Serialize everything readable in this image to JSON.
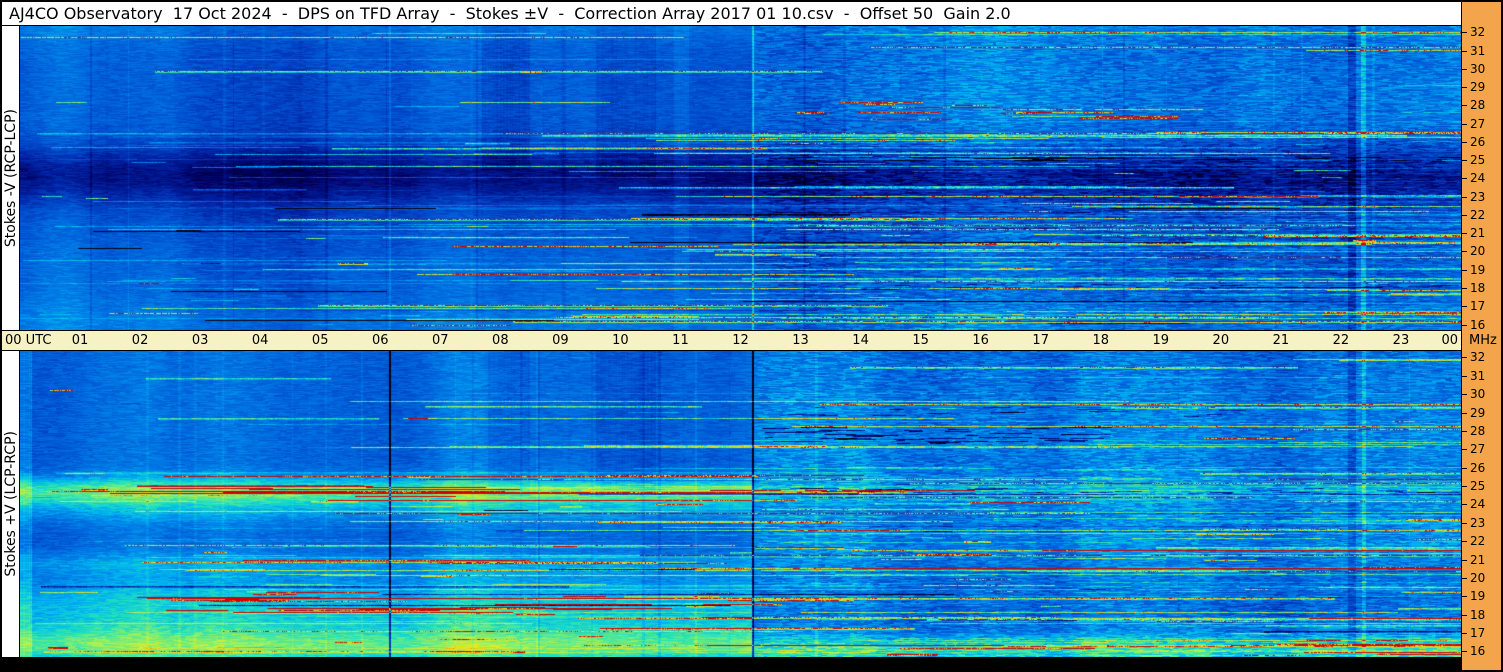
{
  "header": {
    "title": "AJ4CO Observatory  17 Oct 2024  -  DPS on TFD Array  -  Stokes ±V  -  Correction Array 2017 01 10.csv  -  Offset 50  Gain 2.0"
  },
  "panel_labels": {
    "top": "Stokes -V (RCP-LCP)",
    "bottom": "Stokes +V (LCP-RCP)"
  },
  "time_axis": {
    "start": "00 UTC",
    "hours": [
      "01",
      "02",
      "03",
      "04",
      "05",
      "06",
      "07",
      "08",
      "09",
      "10",
      "11",
      "12",
      "13",
      "14",
      "15",
      "16",
      "17",
      "18",
      "19",
      "20",
      "21",
      "22",
      "23"
    ],
    "end": "00",
    "unit": "MHz"
  },
  "freq_axis": {
    "ticks": [
      "32",
      "31",
      "30",
      "29",
      "28",
      "27",
      "26",
      "25",
      "24",
      "23",
      "22",
      "21",
      "20",
      "19",
      "18",
      "17",
      "16"
    ],
    "unit": "MHz"
  },
  "colors": {
    "axis_bg": "#F4A44A",
    "time_band_bg": "#F7F2C4",
    "frame": "#000000",
    "label_bg": "#FFFFFF"
  },
  "chart_data": {
    "type": "heatmap",
    "title": "DPS on TFD Array - Stokes ±V - 17 Oct 2024 - dynamic spectra, two polarization panels",
    "x_axis": {
      "label": "UTC",
      "range_hours": [
        0,
        24
      ],
      "tick_step": 1
    },
    "y_axis": {
      "label": "MHz",
      "range_mhz": [
        16,
        32
      ],
      "tick_step": 1
    },
    "f_view": [
      15.7,
      32.35
    ],
    "palette_stops": [
      [
        0.0,
        "#000010"
      ],
      [
        0.1,
        "#000060"
      ],
      [
        0.22,
        "#0020A0"
      ],
      [
        0.35,
        "#0050D0"
      ],
      [
        0.48,
        "#0080E8"
      ],
      [
        0.58,
        "#00B4F0"
      ],
      [
        0.68,
        "#20E0C0"
      ],
      [
        0.78,
        "#80EE70"
      ],
      [
        0.86,
        "#D8F030"
      ],
      [
        0.92,
        "#F8C800"
      ],
      [
        0.96,
        "#F87800"
      ],
      [
        1.0,
        "#D00000"
      ]
    ],
    "panels": [
      {
        "label": "Stokes -V (RCP-LCP)",
        "seed": 1017,
        "base": 0.4,
        "split_hour": 12.2,
        "speckle": {
          "left": 0.045,
          "right": 0.1
        },
        "bands": [
          {
            "center": 24.2,
            "sigma": 1.1,
            "amp": -0.2,
            "t0": 0,
            "t1": 24
          },
          {
            "center": 23.0,
            "sigma": 2.2,
            "amp": -0.06,
            "t0": 0,
            "t1": 24
          },
          {
            "center": 28.5,
            "sigma": 3.0,
            "amp": 0.06,
            "t0": 12.2,
            "t1": 24
          },
          {
            "center": 32.2,
            "sigma": 0.5,
            "amp": 0.05,
            "t0": 0,
            "t1": 24
          },
          {
            "center": 16.2,
            "sigma": 0.7,
            "amp": 0.05,
            "t0": 0,
            "t1": 24
          },
          {
            "center": 29.0,
            "sigma": 2.5,
            "amp": -0.03,
            "t0": 0,
            "t1": 12.2
          }
        ],
        "col_patches": [
          {
            "t0": 7.7,
            "t1": 8.5,
            "f0": 24.5,
            "f1": 32.35,
            "amp": -0.05
          },
          {
            "t0": 9.6,
            "t1": 10.6,
            "f0": 24.0,
            "f1": 32.35,
            "amp": -0.045
          },
          {
            "t0": 10.9,
            "t1": 11.15,
            "f0": 15.7,
            "f1": 32.35,
            "amp": 0.04
          }
        ],
        "v_lines": [
          {
            "t": 6.16,
            "w": 2,
            "amp": 0.07
          },
          {
            "t": 12.2,
            "w": 2,
            "amp": 0.22
          },
          {
            "t": 22.18,
            "w": 8,
            "amp": -0.13
          },
          {
            "t": 22.38,
            "w": 5,
            "amp": 0.15
          }
        ],
        "streaks": {
          "n": 280,
          "f_zone": 26.5,
          "amp_max": 0.5
        },
        "hot_rows": [
          {
            "f0": 27.0,
            "f1": 28.3,
            "t0": 12.4,
            "t1": 18.6,
            "n": 16,
            "amp0": 0.42,
            "amp1": 0.6,
            "len": [
              20,
              120
            ]
          }
        ],
        "dark_rows": [
          {
            "f0": 24.9,
            "f1": 25.2,
            "t0": 12.3,
            "t1": 24,
            "n": 42,
            "amp": -0.3,
            "len": [
              8,
              50
            ]
          },
          {
            "f0": 17.9,
            "f1": 18.2,
            "t0": 12.3,
            "t1": 24,
            "n": 30,
            "amp": -0.22,
            "len": [
              8,
              40
            ]
          }
        ]
      },
      {
        "label": "Stokes +V (LCP-RCP)",
        "seed": 2024,
        "base": 0.42,
        "split_hour": 12.2,
        "speckle": {
          "left": 0.05,
          "right": 0.1
        },
        "bands": [
          {
            "center": 24.7,
            "sigma": 0.55,
            "amp": 0.34,
            "t0": 0,
            "t1": 12.2
          },
          {
            "center": 24.7,
            "sigma": 0.4,
            "amp": 0.12,
            "t0": 12.2,
            "t1": 24
          },
          {
            "center": 23.6,
            "sigma": 0.5,
            "amp": 0.1,
            "t0": 0,
            "t1": 12.2
          },
          {
            "center": 18.4,
            "sigma": 1.3,
            "amp": 0.2,
            "t0": 0,
            "t1": 12.2
          },
          {
            "center": 16.9,
            "sigma": 0.6,
            "amp": 0.1,
            "t0": 0,
            "t1": 12.2
          },
          {
            "center": 20.8,
            "sigma": 0.4,
            "amp": 0.1,
            "t0": 0,
            "t1": 12.2
          },
          {
            "center": 16.1,
            "sigma": 0.6,
            "amp": 0.26,
            "t0": 0,
            "t1": 24
          },
          {
            "center": 27.6,
            "sigma": 2.8,
            "amp": 0.05,
            "t0": 12.2,
            "t1": 24
          },
          {
            "center": 22.0,
            "sigma": 1.5,
            "amp": 0.05,
            "t0": 12.2,
            "t1": 24
          }
        ],
        "col_patches": [
          {
            "t0": 0,
            "t1": 0.2,
            "f0": 15.7,
            "f1": 32.35,
            "amp": 0.1
          },
          {
            "t0": 9.6,
            "t1": 10.6,
            "f0": 24.5,
            "f1": 32.35,
            "amp": -0.05
          },
          {
            "t0": 7.8,
            "t1": 8.5,
            "f0": 24.5,
            "f1": 32.35,
            "amp": -0.04
          }
        ],
        "v_lines": [
          {
            "t": 6.16,
            "w": 2,
            "amp": -0.45
          },
          {
            "t": 12.2,
            "w": 2,
            "amp": -0.45
          },
          {
            "t": 22.18,
            "w": 8,
            "amp": -0.1
          },
          {
            "t": 22.38,
            "w": 4,
            "amp": 0.12
          }
        ],
        "streaks": {
          "n": 320,
          "f_zone": 26.0,
          "amp_max": 0.5
        },
        "hot_rows": [
          {
            "f0": 18.2,
            "f1": 19.2,
            "t0": 0.3,
            "t1": 11.9,
            "n": 18,
            "amp0": 0.35,
            "amp1": 0.55,
            "len": [
              30,
              200
            ]
          },
          {
            "f0": 24.4,
            "f1": 25.0,
            "t0": 0.3,
            "t1": 11.9,
            "n": 10,
            "amp0": 0.3,
            "amp1": 0.5,
            "len": [
              60,
              300
            ]
          }
        ],
        "dark_rows": [
          {
            "f0": 27.3,
            "f1": 28.2,
            "t0": 12.3,
            "t1": 17.5,
            "n": 40,
            "amp": -0.33,
            "len": [
              8,
              60
            ]
          },
          {
            "f0": 28.8,
            "f1": 29.3,
            "t0": 12.3,
            "t1": 20,
            "n": 20,
            "amp": -0.25,
            "len": [
              6,
              40
            ]
          },
          {
            "f0": 24.6,
            "f1": 24.9,
            "t0": 12.3,
            "t1": 24,
            "n": 30,
            "amp": -0.3,
            "len": [
              6,
              40
            ]
          }
        ]
      }
    ]
  }
}
